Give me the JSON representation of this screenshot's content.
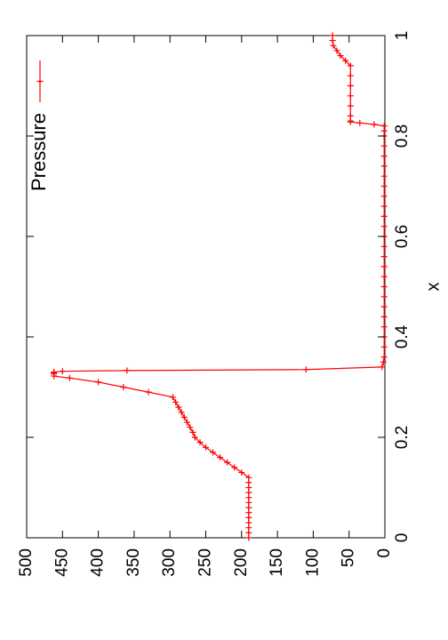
{
  "chart_data": {
    "type": "line",
    "orientation": "rotated-90",
    "xlabel": "x",
    "ylabel": "",
    "xlim": [
      0,
      1
    ],
    "ylim": [
      0,
      500
    ],
    "xticks": [
      0,
      0.2,
      0.4,
      0.6,
      0.8,
      1
    ],
    "xtick_labels": [
      "0",
      "0.2",
      "0.4",
      "0.6",
      "0.8",
      "1"
    ],
    "yticks": [
      0,
      50,
      100,
      150,
      200,
      250,
      300,
      350,
      400,
      450,
      500
    ],
    "ytick_labels": [
      "0",
      "50",
      "100",
      "150",
      "200",
      "250",
      "300",
      "350",
      "400",
      "450",
      "500"
    ],
    "grid": false,
    "legend": "top-right",
    "series": [
      {
        "name": "Pressure",
        "color": "#ff0000",
        "marker": "plus",
        "x": [
          0.0,
          0.01,
          0.02,
          0.03,
          0.04,
          0.05,
          0.06,
          0.07,
          0.08,
          0.09,
          0.1,
          0.11,
          0.12,
          0.13,
          0.14,
          0.15,
          0.16,
          0.17,
          0.18,
          0.19,
          0.2,
          0.21,
          0.22,
          0.23,
          0.24,
          0.25,
          0.26,
          0.27,
          0.28,
          0.29,
          0.3,
          0.31,
          0.318,
          0.322,
          0.326,
          0.3285,
          0.33,
          0.3315,
          0.333,
          0.335,
          0.34,
          0.35,
          0.36,
          0.38,
          0.4,
          0.42,
          0.44,
          0.46,
          0.48,
          0.5,
          0.52,
          0.54,
          0.56,
          0.58,
          0.6,
          0.62,
          0.64,
          0.66,
          0.68,
          0.7,
          0.72,
          0.74,
          0.76,
          0.78,
          0.8,
          0.81,
          0.82,
          0.823,
          0.826,
          0.828,
          0.83,
          0.84,
          0.86,
          0.88,
          0.9,
          0.92,
          0.94,
          0.95,
          0.96,
          0.97,
          0.98,
          0.99,
          1.0
        ],
        "y": [
          190,
          190,
          190,
          190,
          190,
          190,
          190,
          190,
          190,
          190,
          190,
          190,
          190,
          200,
          210,
          220,
          230,
          240,
          250,
          258,
          265,
          268,
          272,
          276,
          280,
          284,
          288,
          292,
          296,
          330,
          365,
          400,
          440,
          462,
          462,
          462,
          462,
          450,
          360,
          110,
          4,
          2,
          1,
          1,
          1,
          1,
          1,
          1,
          1,
          1,
          1,
          1,
          1,
          1,
          1,
          1,
          1,
          1,
          1,
          1,
          1,
          1,
          1,
          1,
          1,
          1,
          1,
          15,
          35,
          48,
          48,
          48,
          48,
          48,
          48,
          48,
          48,
          55,
          62,
          67,
          72,
          73,
          73
        ]
      }
    ]
  }
}
